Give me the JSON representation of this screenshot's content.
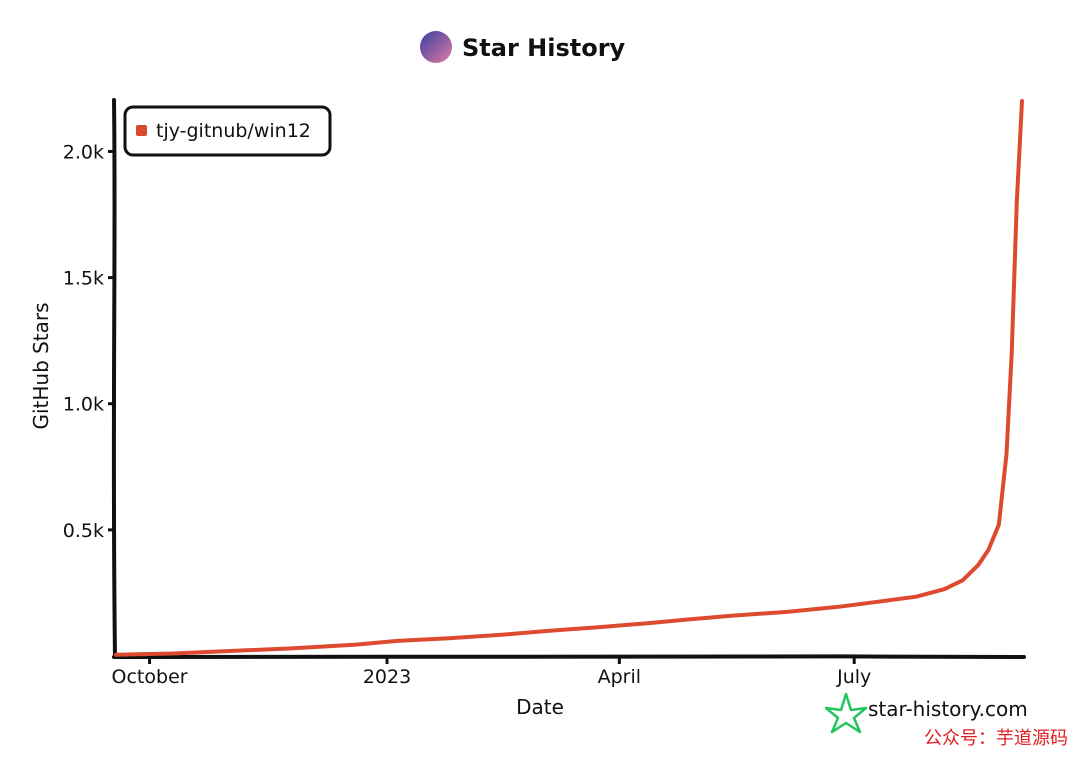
{
  "header": {
    "title": "Star History"
  },
  "footer": {
    "brand": "star-history.com",
    "watermark": "公众号：芋道源码"
  },
  "colors": {
    "series": "#dd4a2f",
    "axis": "#111111",
    "brand_icon": "#22c55e",
    "watermark": "#e02020",
    "logo_start": "#3a3fa5",
    "logo_end": "#e07aa0"
  },
  "chart_data": {
    "type": "line",
    "xlabel": "Date",
    "ylabel": "GitHub Stars",
    "x_ticks": [
      "October",
      "2023",
      "April",
      "July"
    ],
    "x_tick_dates": [
      "2022-10-01",
      "2023-01-01",
      "2023-04-01",
      "2023-07-01"
    ],
    "xlim": [
      "2022-09-18",
      "2023-09-04"
    ],
    "ylim": [
      0,
      2200
    ],
    "y_ticks": [
      500,
      1000,
      1500,
      2000
    ],
    "y_tick_labels": [
      "0.5k",
      "1.0k",
      "1.5k",
      "2.0k"
    ],
    "legend": {
      "position": "top-left",
      "entries": [
        "tjy-gitnub/win12"
      ]
    },
    "grid": false,
    "series": [
      {
        "name": "tjy-gitnub/win12",
        "x": [
          "2022-09-18",
          "2022-10-10",
          "2022-11-01",
          "2022-11-25",
          "2022-12-20",
          "2023-01-05",
          "2023-01-25",
          "2023-02-15",
          "2023-03-05",
          "2023-03-25",
          "2023-04-12",
          "2023-04-28",
          "2023-05-15",
          "2023-06-05",
          "2023-06-25",
          "2023-07-10",
          "2023-07-25",
          "2023-08-05",
          "2023-08-12",
          "2023-08-18",
          "2023-08-22",
          "2023-08-26",
          "2023-08-29",
          "2023-08-31",
          "2023-09-02",
          "2023-09-04"
        ],
        "values": [
          5,
          10,
          20,
          30,
          45,
          60,
          70,
          85,
          100,
          115,
          130,
          145,
          160,
          175,
          195,
          215,
          235,
          265,
          300,
          360,
          420,
          520,
          800,
          1200,
          1800,
          2200
        ]
      }
    ]
  }
}
